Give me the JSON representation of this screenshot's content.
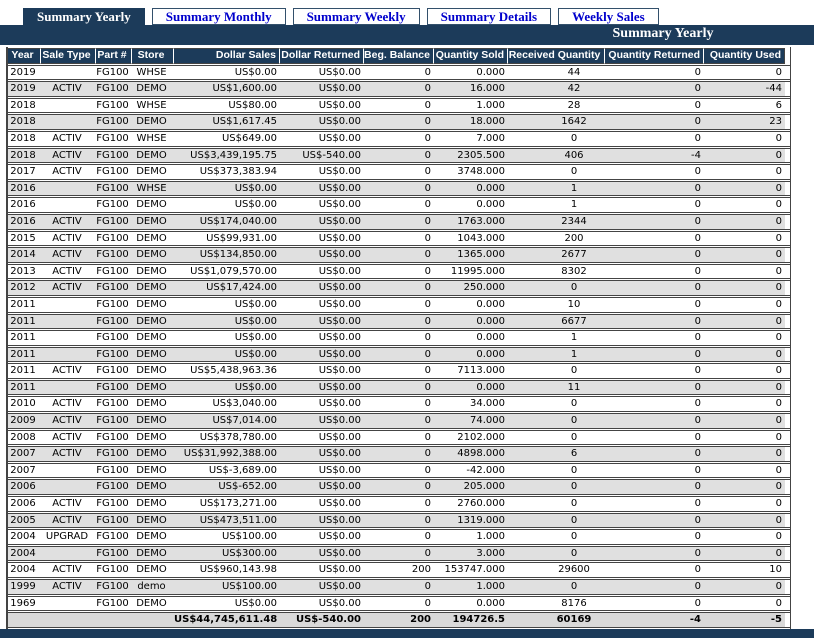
{
  "colors": {
    "accent_navy": "#1c3b5a",
    "tab_link_blue": "#0000cc",
    "alt_row_gray": "#e0e0e0",
    "total_row_gray": "#d9d9d9",
    "row_border": "#444444"
  },
  "tabs": [
    {
      "label": "Summary Yearly",
      "active": true
    },
    {
      "label": "Summary Monthly",
      "active": false
    },
    {
      "label": "Summary Weekly",
      "active": false
    },
    {
      "label": "Summary Details",
      "active": false
    },
    {
      "label": "Weekly Sales",
      "active": false
    }
  ],
  "title": "Summary Yearly",
  "table": {
    "columns": [
      "Year",
      "Sale Type",
      "Part #",
      "Store",
      "Dollar Sales",
      "Dollar Returned",
      "Beg. Balance",
      "Quantity Sold",
      "Received Quantity",
      "Quantity Returned",
      "Quantity Used"
    ],
    "rows": [
      [
        "2019",
        "",
        "FG100",
        "WHSE",
        "US$0.00",
        "US$0.00",
        "0",
        "0.000",
        "44",
        "0",
        "0"
      ],
      [
        "2019",
        "ACTIV",
        "FG100",
        "DEMO",
        "US$1,600.00",
        "US$0.00",
        "0",
        "16.000",
        "42",
        "0",
        "-44"
      ],
      [
        "2018",
        "",
        "FG100",
        "WHSE",
        "US$80.00",
        "US$0.00",
        "0",
        "1.000",
        "28",
        "0",
        "6"
      ],
      [
        "2018",
        "",
        "FG100",
        "DEMO",
        "US$1,617.45",
        "US$0.00",
        "0",
        "18.000",
        "1642",
        "0",
        "23"
      ],
      [
        "2018",
        "ACTIV",
        "FG100",
        "WHSE",
        "US$649.00",
        "US$0.00",
        "0",
        "7.000",
        "0",
        "0",
        "0"
      ],
      [
        "2018",
        "ACTIV",
        "FG100",
        "DEMO",
        "US$3,439,195.75",
        "US$-540.00",
        "0",
        "2305.500",
        "406",
        "-4",
        "0"
      ],
      [
        "2017",
        "ACTIV",
        "FG100",
        "DEMO",
        "US$373,383.94",
        "US$0.00",
        "0",
        "3748.000",
        "0",
        "0",
        "0"
      ],
      [
        "2016",
        "",
        "FG100",
        "WHSE",
        "US$0.00",
        "US$0.00",
        "0",
        "0.000",
        "1",
        "0",
        "0"
      ],
      [
        "2016",
        "",
        "FG100",
        "DEMO",
        "US$0.00",
        "US$0.00",
        "0",
        "0.000",
        "1",
        "0",
        "0"
      ],
      [
        "2016",
        "ACTIV",
        "FG100",
        "DEMO",
        "US$174,040.00",
        "US$0.00",
        "0",
        "1763.000",
        "2344",
        "0",
        "0"
      ],
      [
        "2015",
        "ACTIV",
        "FG100",
        "DEMO",
        "US$99,931.00",
        "US$0.00",
        "0",
        "1043.000",
        "200",
        "0",
        "0"
      ],
      [
        "2014",
        "ACTIV",
        "FG100",
        "DEMO",
        "US$134,850.00",
        "US$0.00",
        "0",
        "1365.000",
        "2677",
        "0",
        "0"
      ],
      [
        "2013",
        "ACTIV",
        "FG100",
        "DEMO",
        "US$1,079,570.00",
        "US$0.00",
        "0",
        "11995.000",
        "8302",
        "0",
        "0"
      ],
      [
        "2012",
        "ACTIV",
        "FG100",
        "DEMO",
        "US$17,424.00",
        "US$0.00",
        "0",
        "250.000",
        "0",
        "0",
        "0"
      ],
      [
        "2011",
        "",
        "FG100",
        "DEMO",
        "US$0.00",
        "US$0.00",
        "0",
        "0.000",
        "10",
        "0",
        "0"
      ],
      [
        "2011",
        "",
        "FG100",
        "DEMO",
        "US$0.00",
        "US$0.00",
        "0",
        "0.000",
        "6677",
        "0",
        "0"
      ],
      [
        "2011",
        "",
        "FG100",
        "DEMO",
        "US$0.00",
        "US$0.00",
        "0",
        "0.000",
        "1",
        "0",
        "0"
      ],
      [
        "2011",
        "",
        "FG100",
        "DEMO",
        "US$0.00",
        "US$0.00",
        "0",
        "0.000",
        "1",
        "0",
        "0"
      ],
      [
        "2011",
        "ACTIV",
        "FG100",
        "DEMO",
        "US$5,438,963.36",
        "US$0.00",
        "0",
        "7113.000",
        "0",
        "0",
        "0"
      ],
      [
        "2011",
        "",
        "FG100",
        "DEMO",
        "US$0.00",
        "US$0.00",
        "0",
        "0.000",
        "11",
        "0",
        "0"
      ],
      [
        "2010",
        "ACTIV",
        "FG100",
        "DEMO",
        "US$3,040.00",
        "US$0.00",
        "0",
        "34.000",
        "0",
        "0",
        "0"
      ],
      [
        "2009",
        "ACTIV",
        "FG100",
        "DEMO",
        "US$7,014.00",
        "US$0.00",
        "0",
        "74.000",
        "0",
        "0",
        "0"
      ],
      [
        "2008",
        "ACTIV",
        "FG100",
        "DEMO",
        "US$378,780.00",
        "US$0.00",
        "0",
        "2102.000",
        "0",
        "0",
        "0"
      ],
      [
        "2007",
        "ACTIV",
        "FG100",
        "DEMO",
        "US$31,992,388.00",
        "US$0.00",
        "0",
        "4898.000",
        "6",
        "0",
        "0"
      ],
      [
        "2007",
        "",
        "FG100",
        "DEMO",
        "US$-3,689.00",
        "US$0.00",
        "0",
        "-42.000",
        "0",
        "0",
        "0"
      ],
      [
        "2006",
        "",
        "FG100",
        "DEMO",
        "US$-652.00",
        "US$0.00",
        "0",
        "205.000",
        "0",
        "0",
        "0"
      ],
      [
        "2006",
        "ACTIV",
        "FG100",
        "DEMO",
        "US$173,271.00",
        "US$0.00",
        "0",
        "2760.000",
        "0",
        "0",
        "0"
      ],
      [
        "2005",
        "ACTIV",
        "FG100",
        "DEMO",
        "US$473,511.00",
        "US$0.00",
        "0",
        "1319.000",
        "0",
        "0",
        "0"
      ],
      [
        "2004",
        "UPGRAD",
        "FG100",
        "DEMO",
        "US$100.00",
        "US$0.00",
        "0",
        "1.000",
        "0",
        "0",
        "0"
      ],
      [
        "2004",
        "",
        "FG100",
        "DEMO",
        "US$300.00",
        "US$0.00",
        "0",
        "3.000",
        "0",
        "0",
        "0"
      ],
      [
        "2004",
        "ACTIV",
        "FG100",
        "DEMO",
        "US$960,143.98",
        "US$0.00",
        "200",
        "153747.000",
        "29600",
        "0",
        "10"
      ],
      [
        "1999",
        "ACTIV",
        "FG100",
        "demo",
        "US$100.00",
        "US$0.00",
        "0",
        "1.000",
        "0",
        "0",
        "0"
      ],
      [
        "1969",
        "",
        "FG100",
        "DEMO",
        "US$0.00",
        "US$0.00",
        "0",
        "0.000",
        "8176",
        "0",
        "0"
      ]
    ],
    "totals": [
      "",
      "",
      "",
      "",
      "US$44,745,611.48",
      "US$-540.00",
      "200",
      "194726.5",
      "60169",
      "-4",
      "-5"
    ]
  }
}
